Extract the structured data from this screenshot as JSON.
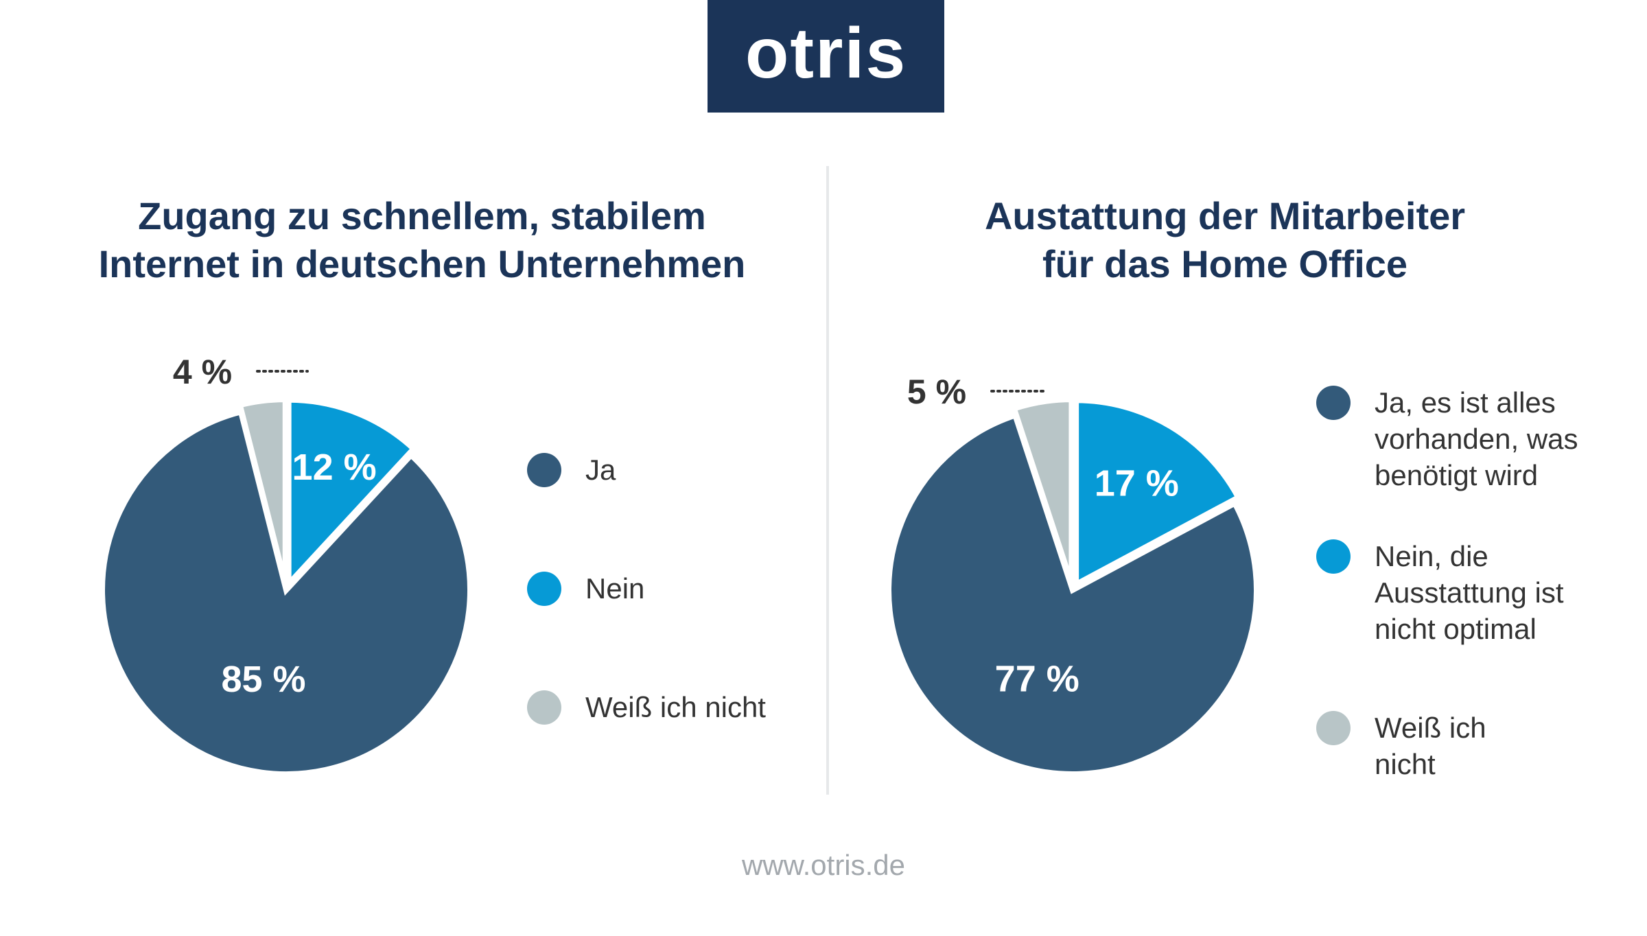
{
  "logo": {
    "text": "otris"
  },
  "colors": {
    "ja": "#335a7a",
    "nein": "#069ad6",
    "weiss": "#b8c5c7",
    "brand": "#1b3458"
  },
  "footer": {
    "url": "www.otris.de"
  },
  "chart_data": [
    {
      "type": "pie",
      "title": "Zugang zu schnellem, stabilem Internet in deutschen Unternehmen",
      "title_lines": [
        "Zugang zu schnellem, stabilem",
        "Internet in deutschen Unternehmen"
      ],
      "slices": [
        {
          "label": "Ja",
          "value": 85,
          "value_label": "85 %"
        },
        {
          "label": "Nein",
          "value": 12,
          "value_label": "12 %"
        },
        {
          "label": "Weiß ich nicht",
          "value": 4,
          "value_label": "4 %"
        }
      ],
      "legend": [
        {
          "lines": [
            "Ja"
          ]
        },
        {
          "lines": [
            "Nein"
          ]
        },
        {
          "lines": [
            "Weiß ich nicht"
          ]
        }
      ],
      "legend_placement": "right"
    },
    {
      "type": "pie",
      "title": "Austattung der Mitarbeiter für das Home Office",
      "title_lines": [
        "Austattung der Mitarbeiter",
        "für das Home Office"
      ],
      "slices": [
        {
          "label": "Ja, es ist alles vorhanden, was benötigt wird",
          "value": 77,
          "value_label": "77 %"
        },
        {
          "label": "Nein, die Ausstattung ist nicht optimal",
          "value": 17,
          "value_label": "17 %"
        },
        {
          "label": "Weiß ich nicht",
          "value": 5,
          "value_label": "5 %"
        }
      ],
      "legend": [
        {
          "lines": [
            "Ja, es ist alles",
            "vorhanden, was",
            "benötigt wird"
          ]
        },
        {
          "lines": [
            "Nein, die",
            "Ausstattung ist",
            "nicht optimal"
          ]
        },
        {
          "lines": [
            "Weiß ich",
            "nicht"
          ]
        }
      ],
      "legend_placement": "right"
    }
  ]
}
